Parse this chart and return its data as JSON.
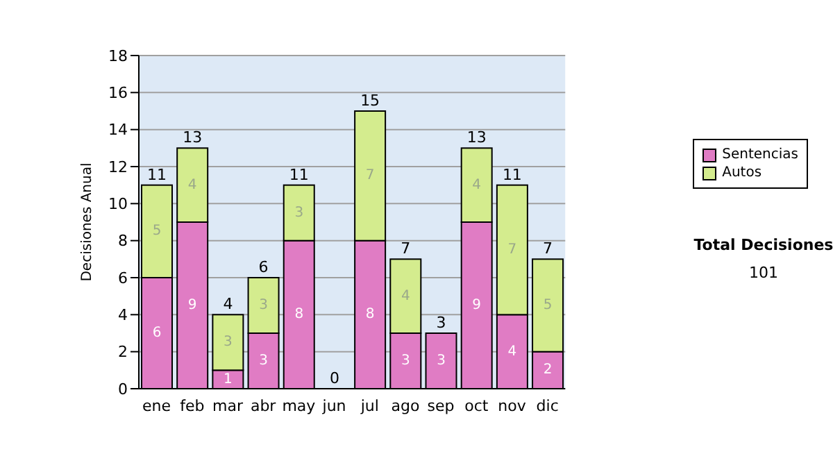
{
  "chart_data": {
    "type": "bar",
    "stacked": true,
    "ylabel": "Decisiones Anual",
    "categories": [
      "ene",
      "feb",
      "mar",
      "abr",
      "may",
      "jun",
      "jul",
      "ago",
      "sep",
      "oct",
      "nov",
      "dic"
    ],
    "series": [
      {
        "name": "Sentencias",
        "color": "#e07cc4",
        "values": [
          6,
          9,
          1,
          3,
          8,
          0,
          8,
          3,
          3,
          9,
          4,
          2
        ],
        "value_labels": [
          "6",
          "9",
          "1",
          "3",
          "8",
          null,
          "8",
          "3",
          "3",
          "9",
          "4",
          "2"
        ]
      },
      {
        "name": "Autos",
        "color": "#d4ec8e",
        "values": [
          5,
          4,
          3,
          3,
          3,
          0,
          7,
          4,
          0,
          4,
          7,
          5
        ],
        "value_labels": [
          "5",
          "4",
          "3",
          "3",
          "3",
          null,
          "7",
          "4",
          null,
          "4",
          "7",
          "5"
        ]
      }
    ],
    "totals": [
      "11",
      "13",
      "4",
      "6",
      "11",
      "0",
      "15",
      "7",
      "3",
      "13",
      "11",
      "7"
    ],
    "ylim": [
      0,
      18
    ],
    "yticks": [
      0,
      2,
      4,
      6,
      8,
      10,
      12,
      14,
      16,
      18
    ],
    "grid": "y",
    "legend": "right",
    "annotations": [
      "Total Decisiones",
      "101"
    ]
  }
}
